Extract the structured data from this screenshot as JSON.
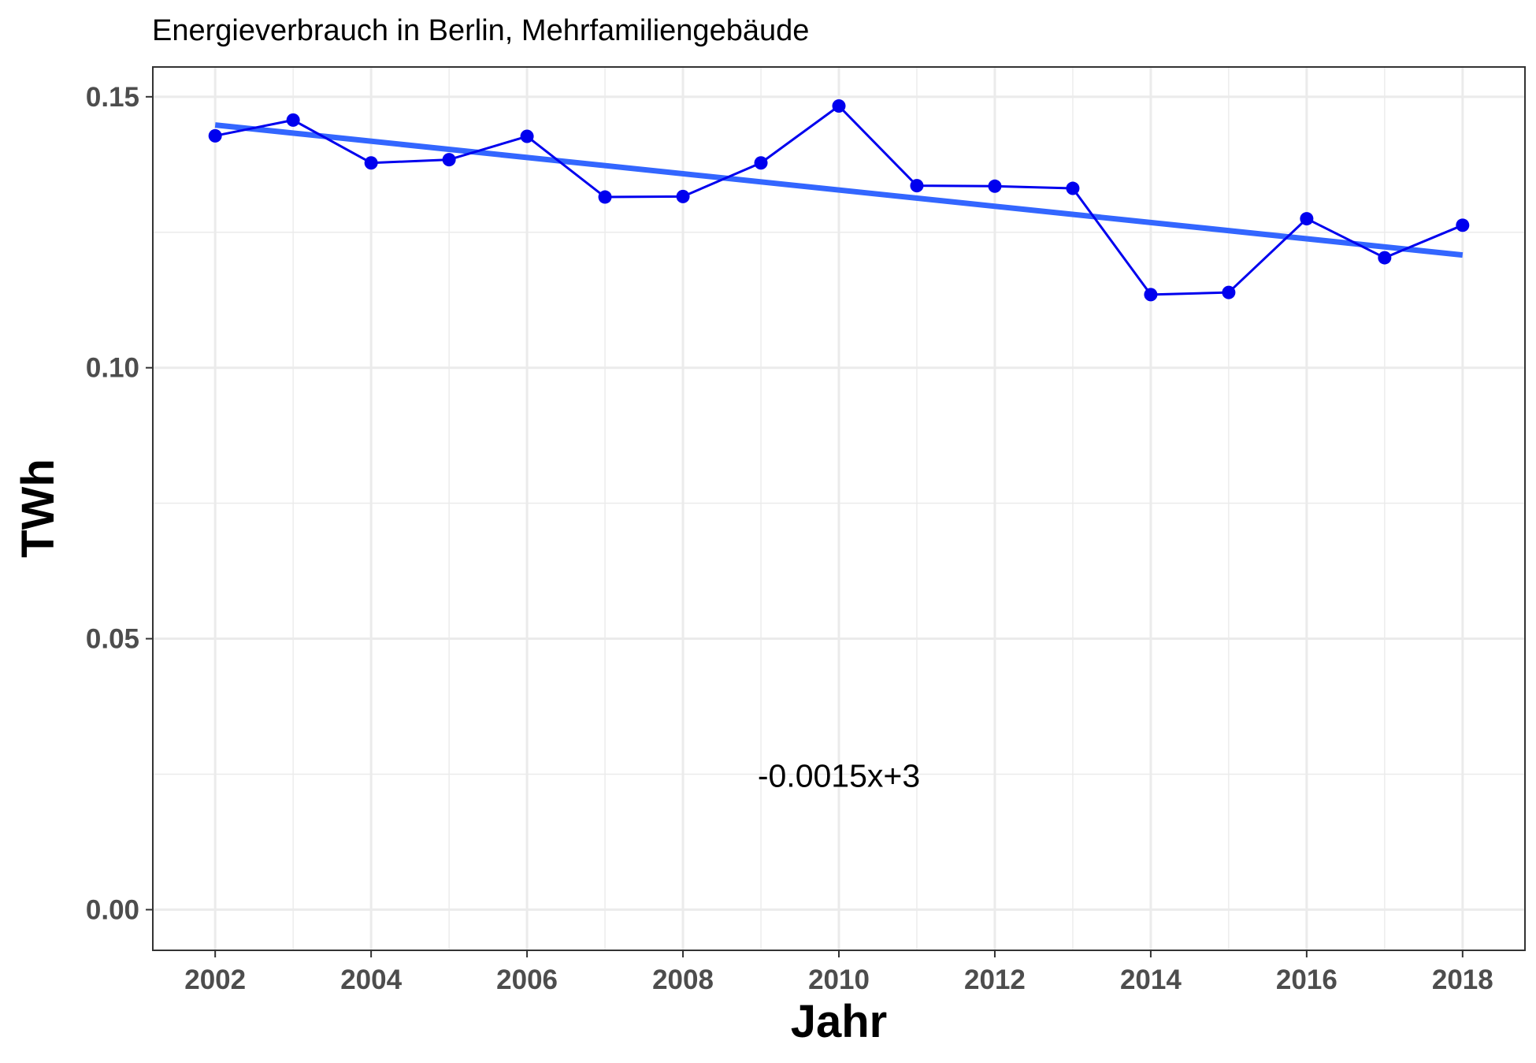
{
  "chart_data": {
    "type": "line",
    "title": "Energieverbrauch in Berlin, Mehrfamiliengebäude",
    "xlabel": "Jahr",
    "ylabel": "TWh",
    "xlim": [
      2001.2,
      2018.8
    ],
    "ylim": [
      -0.0075,
      0.1555
    ],
    "x_ticks": [
      2002,
      2004,
      2006,
      2008,
      2010,
      2012,
      2014,
      2016,
      2018
    ],
    "x_tick_labels": [
      "2002",
      "2004",
      "2006",
      "2008",
      "2010",
      "2012",
      "2014",
      "2016",
      "2018"
    ],
    "y_ticks": [
      0.0,
      0.05,
      0.1,
      0.15
    ],
    "y_tick_labels": [
      "0.00",
      "0.05",
      "0.10",
      "0.15"
    ],
    "x_minor_ticks": [
      2003,
      2005,
      2007,
      2009,
      2011,
      2013,
      2015,
      2017
    ],
    "y_minor_ticks": [
      0.025,
      0.075,
      0.125
    ],
    "grid": true,
    "series": [
      {
        "color": "#0000ee",
        "x": [
          2002,
          2003,
          2004,
          2005,
          2006,
          2007,
          2008,
          2009,
          2010,
          2011,
          2012,
          2013,
          2014,
          2015,
          2016,
          2017,
          2018
        ],
        "values": [
          0.1428,
          0.1457,
          0.1378,
          0.1384,
          0.1427,
          0.1315,
          0.1316,
          0.1378,
          0.1483,
          0.1336,
          0.1335,
          0.1331,
          0.1135,
          0.1139,
          0.1275,
          0.1203,
          0.1263
        ]
      }
    ],
    "trend": {
      "color": "#3366ff",
      "x": [
        2002,
        2018
      ],
      "values": [
        0.1448,
        0.1208
      ]
    },
    "annotation": {
      "text": "-0.0015x+3",
      "x": 2010,
      "y": 0.0247
    }
  }
}
